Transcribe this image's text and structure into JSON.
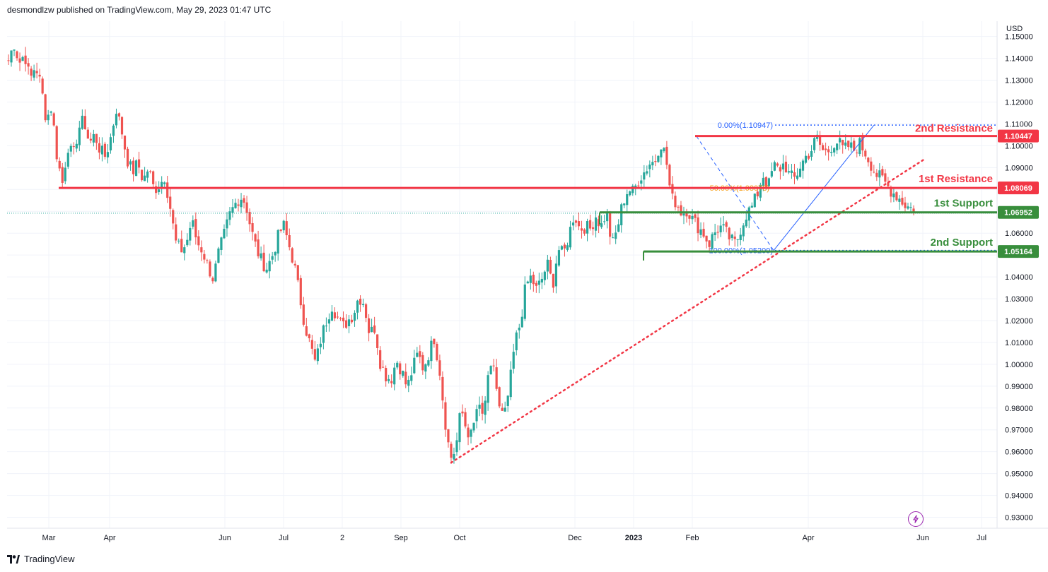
{
  "header": {
    "publisher": "desmondlzw published on TradingView.com, May 29, 2023 01:47 UTC"
  },
  "footer": {
    "brand": "TradingView",
    "logo_icon": "tradingview-logo-icon"
  },
  "colors": {
    "up": "#26a69a",
    "down": "#ef5350",
    "resistance": "#f23645",
    "support": "#388e3c",
    "fib": "#2962ff",
    "fib_mid": "#f7a21b",
    "grid": "#f0f3fa",
    "axis_text": "#131722"
  },
  "chart_data": {
    "type": "candlestick",
    "symbol_currency": "USD",
    "y_range": [
      0.925,
      1.157
    ],
    "y_ticks": [
      "1.15000",
      "1.14000",
      "1.13000",
      "1.12000",
      "1.11000",
      "1.10000",
      "1.09000",
      "1.08000",
      "1.07000",
      "1.06000",
      "1.05000",
      "1.04000",
      "1.03000",
      "1.02000",
      "1.01000",
      "1.00000",
      "0.99000",
      "0.98000",
      "0.97000",
      "0.96000",
      "0.95000",
      "0.94000",
      "0.93000"
    ],
    "x_ticks": [
      {
        "label": "Mar",
        "bold": false
      },
      {
        "label": "Apr",
        "bold": false
      },
      {
        "label": "Jun",
        "bold": false
      },
      {
        "label": "Jul",
        "bold": false
      },
      {
        "label": "2",
        "bold": false
      },
      {
        "label": "Sep",
        "bold": false
      },
      {
        "label": "Oct",
        "bold": false
      },
      {
        "label": "Dec",
        "bold": false
      },
      {
        "label": "2023",
        "bold": true
      },
      {
        "label": "Feb",
        "bold": false
      },
      {
        "label": "Apr",
        "bold": false
      },
      {
        "label": "Jun",
        "bold": false
      },
      {
        "label": "Jul",
        "bold": false
      }
    ],
    "price_path": [
      1.139,
      1.147,
      1.138,
      1.142,
      1.13,
      1.137,
      1.128,
      1.112,
      1.118,
      1.095,
      1.083,
      1.1,
      1.095,
      1.108,
      1.112,
      1.101,
      1.105,
      1.098,
      1.095,
      1.104,
      1.117,
      1.107,
      1.094,
      1.088,
      1.092,
      1.084,
      1.09,
      1.08,
      1.082,
      1.086,
      1.072,
      1.056,
      1.052,
      1.055,
      1.066,
      1.056,
      1.052,
      1.045,
      1.039,
      1.051,
      1.059,
      1.068,
      1.073,
      1.077,
      1.074,
      1.062,
      1.053,
      1.047,
      1.044,
      1.05,
      1.058,
      1.064,
      1.055,
      1.046,
      1.032,
      1.018,
      1.009,
      1.0,
      1.012,
      1.02,
      1.027,
      1.022,
      1.017,
      1.02,
      1.023,
      1.031,
      1.028,
      1.014,
      1.017,
      1.001,
      0.995,
      0.993,
      1.002,
      0.997,
      0.989,
      0.998,
      1.005,
      0.998,
      1.005,
      1.012,
      0.998,
      0.975,
      0.957,
      0.961,
      0.98,
      0.97,
      0.967,
      0.981,
      0.976,
      0.992,
      1.001,
      0.98,
      0.975,
      0.99,
      1.01,
      1.019,
      1.036,
      1.04,
      1.034,
      1.039,
      1.046,
      1.036,
      1.053,
      1.05,
      1.059,
      1.069,
      1.062,
      1.063,
      1.062,
      1.068,
      1.063,
      1.07,
      1.054,
      1.062,
      1.074,
      1.08,
      1.079,
      1.085,
      1.088,
      1.092,
      1.093,
      1.102,
      1.095,
      1.076,
      1.074,
      1.069,
      1.071,
      1.066,
      1.063,
      1.06,
      1.055,
      1.06,
      1.063,
      1.061,
      1.057,
      1.055,
      1.063,
      1.069,
      1.072,
      1.078,
      1.087,
      1.081,
      1.091,
      1.089,
      1.092,
      1.086,
      1.085,
      1.091,
      1.095,
      1.098,
      1.104,
      1.098,
      1.097,
      1.101,
      1.102,
      1.098,
      1.1,
      1.098,
      1.101,
      1.097,
      1.092,
      1.087,
      1.085,
      1.082,
      1.079,
      1.077,
      1.074,
      1.072,
      1.071
    ],
    "fibonacci": {
      "levels": [
        {
          "label": "0.00%(1.10947)",
          "price": 1.10947
        },
        {
          "label": "50.00%(1.08078)",
          "price": 1.08078
        },
        {
          "label": "100.00%(1.05209)",
          "price": 1.05209
        }
      ]
    },
    "horizontal_levels": [
      {
        "name": "2nd Resistance",
        "price_label": "1.10447",
        "price": 1.10447,
        "kind": "resistance"
      },
      {
        "name": "1st Resistance",
        "price_label": "1.08069",
        "price": 1.08069,
        "kind": "resistance"
      },
      {
        "name": "1st Support",
        "price_label": "1.06952",
        "price": 1.06952,
        "kind": "support"
      },
      {
        "name": "2nd Support",
        "price_label": "1.05164",
        "price": 1.05164,
        "kind": "support"
      }
    ],
    "trendline": {
      "style": "dotted",
      "from_price": 0.955,
      "to_price": 1.094
    },
    "grid": true
  }
}
